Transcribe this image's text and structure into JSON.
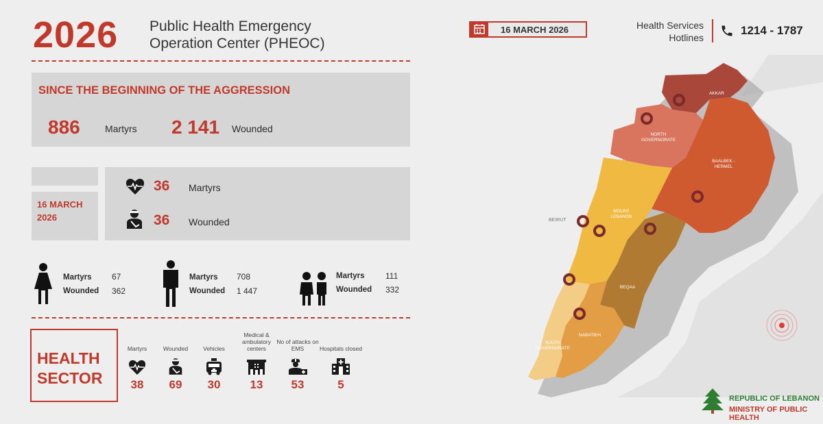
{
  "header": {
    "year": "2026",
    "title_line1": "Public Health Emergency",
    "title_line2": "Operation Center (PHEOC)",
    "date": "16 MARCH 2026",
    "hotlines_line1": "Health Services",
    "hotlines_line2": "Hotlines",
    "hotline_number": "1214 - 1787"
  },
  "since_beginning": {
    "heading": "SINCE THE BEGINNING OF THE AGGRESSION",
    "martyrs_value": "886",
    "martyrs_label": "Martyrs",
    "wounded_value": "2 141",
    "wounded_label": "Wounded"
  },
  "daily": {
    "date_line1": "16 MARCH",
    "date_line2": "2026",
    "martyrs_value": "36",
    "martyrs_label": "Martyrs",
    "wounded_value": "36",
    "wounded_label": "Wounded"
  },
  "demographics": [
    {
      "icon": "woman-icon",
      "martyrs_label": "Martyrs",
      "martyrs": "67",
      "wounded_label": "Wounded",
      "wounded": "362"
    },
    {
      "icon": "man-icon",
      "martyrs_label": "Martyrs",
      "martyrs": "708",
      "wounded_label": "Wounded",
      "wounded": "1 447"
    },
    {
      "icon": "children-icon",
      "martyrs_label": "Martyrs",
      "martyrs": "111",
      "wounded_label": "Wounded",
      "wounded": "332"
    }
  ],
  "health_sector": {
    "title_line1": "HEALTH",
    "title_line2": "SECTOR",
    "items": [
      {
        "label": "Martyrs",
        "value": "38",
        "icon": "heart-pulse-icon"
      },
      {
        "label": "Wounded",
        "value": "69",
        "icon": "injured-person-icon"
      },
      {
        "label": "Vehicles",
        "value": "30",
        "icon": "ambulance-icon"
      },
      {
        "label": "Medical & ambulatory centers",
        "value": "13",
        "icon": "medical-center-icon"
      },
      {
        "label": "No of attacks on EMS",
        "value": "53",
        "icon": "paramedic-icon"
      },
      {
        "label": "Hospitals closed",
        "value": "5",
        "icon": "hospital-icon"
      }
    ]
  },
  "map": {
    "regions": {
      "akkar": "AKKAR",
      "north": "NORTH GOVERNORATE",
      "baalbek": "BAALBEK - HERMEL",
      "mount": "MOUNT LEBANON",
      "beirut": "BEIRUT",
      "beqaa": "BEQAA",
      "nabatieh": "NABATIEH",
      "south": "SOUTH GOVERNORATE"
    },
    "colors": {
      "akkar": "#a9483a",
      "north": "#d9755f",
      "baalbek": "#cf5a30",
      "mount": "#f0b942",
      "beqaa": "#b07a33",
      "south": "#f3cc86",
      "nabatieh": "#e39e45",
      "beirut": "#e8a834"
    }
  },
  "footer": {
    "line1": "REPUBLIC OF LEBANON",
    "line2": "MINISTRY OF PUBLIC HEALTH"
  }
}
